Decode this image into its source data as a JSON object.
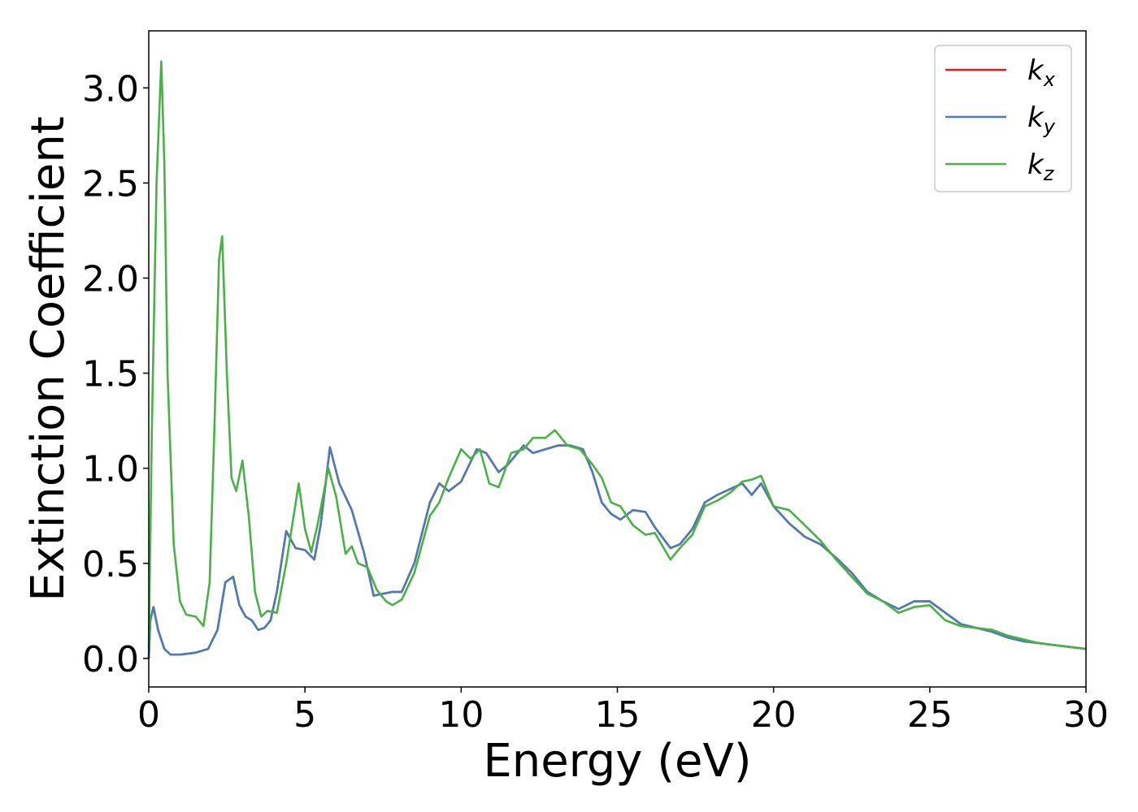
{
  "chart_data": {
    "type": "line",
    "xlabel": "Energy (eV)",
    "ylabel": "Extinction Coefficient",
    "xlim": [
      0,
      30
    ],
    "ylim": [
      -0.15,
      3.3
    ],
    "x_ticks": [
      0,
      5,
      10,
      15,
      20,
      25,
      30
    ],
    "x_tick_labels": [
      "0",
      "5",
      "10",
      "15",
      "20",
      "25",
      "30"
    ],
    "y_ticks": [
      0.0,
      0.5,
      1.0,
      1.5,
      2.0,
      2.5,
      3.0
    ],
    "y_tick_labels": [
      "0.0",
      "0.5",
      "1.0",
      "1.5",
      "2.0",
      "2.5",
      "3.0"
    ],
    "grid": false,
    "legend_position": "top-right",
    "series": [
      {
        "name": "k_x",
        "legend_base": "k",
        "legend_sub": "x",
        "color": "#e41a1c",
        "x": [
          0,
          0.05,
          0.15,
          0.3,
          0.5,
          0.7,
          1.0,
          1.5,
          1.9,
          2.2,
          2.45,
          2.7,
          2.9,
          3.1,
          3.3,
          3.5,
          3.7,
          3.9,
          4.1,
          4.4,
          4.7,
          5.0,
          5.3,
          5.5,
          5.8,
          6.1,
          6.5,
          6.9,
          7.2,
          7.5,
          7.8,
          8.1,
          8.5,
          9.0,
          9.3,
          9.6,
          10.0,
          10.5,
          10.8,
          11.2,
          11.5,
          12.0,
          12.3,
          12.7,
          13.1,
          13.5,
          13.9,
          14.2,
          14.5,
          14.8,
          15.1,
          15.5,
          15.9,
          16.2,
          16.7,
          17.0,
          17.4,
          17.8,
          18.2,
          18.6,
          19.0,
          19.3,
          19.6,
          20.0,
          20.5,
          21.0,
          21.5,
          22.0,
          22.5,
          23.0,
          23.5,
          24.0,
          24.5,
          25.0,
          25.5,
          26.0,
          26.5,
          27.0,
          27.5,
          28.0,
          28.5,
          29.0,
          29.5,
          30.0
        ],
        "values": [
          0.0,
          0.2,
          0.27,
          0.15,
          0.05,
          0.02,
          0.02,
          0.03,
          0.05,
          0.15,
          0.4,
          0.43,
          0.28,
          0.22,
          0.2,
          0.15,
          0.16,
          0.2,
          0.35,
          0.67,
          0.58,
          0.57,
          0.52,
          0.7,
          1.11,
          0.92,
          0.78,
          0.55,
          0.33,
          0.34,
          0.35,
          0.35,
          0.5,
          0.82,
          0.92,
          0.88,
          0.93,
          1.1,
          1.08,
          0.98,
          1.02,
          1.12,
          1.08,
          1.1,
          1.12,
          1.12,
          1.1,
          0.98,
          0.82,
          0.76,
          0.73,
          0.78,
          0.77,
          0.69,
          0.58,
          0.6,
          0.68,
          0.82,
          0.86,
          0.89,
          0.92,
          0.86,
          0.92,
          0.8,
          0.71,
          0.64,
          0.6,
          0.53,
          0.45,
          0.35,
          0.3,
          0.26,
          0.3,
          0.3,
          0.24,
          0.18,
          0.16,
          0.14,
          0.11,
          0.09,
          0.08,
          0.07,
          0.06,
          0.05
        ]
      },
      {
        "name": "k_y",
        "legend_base": "k",
        "legend_sub": "y",
        "color": "#4a7eb4",
        "x": [
          0,
          0.05,
          0.15,
          0.3,
          0.5,
          0.7,
          1.0,
          1.5,
          1.9,
          2.2,
          2.45,
          2.7,
          2.9,
          3.1,
          3.3,
          3.5,
          3.7,
          3.9,
          4.1,
          4.4,
          4.7,
          5.0,
          5.3,
          5.5,
          5.8,
          6.1,
          6.5,
          6.9,
          7.2,
          7.5,
          7.8,
          8.1,
          8.5,
          9.0,
          9.3,
          9.6,
          10.0,
          10.5,
          10.8,
          11.2,
          11.5,
          12.0,
          12.3,
          12.7,
          13.1,
          13.5,
          13.9,
          14.2,
          14.5,
          14.8,
          15.1,
          15.5,
          15.9,
          16.2,
          16.7,
          17.0,
          17.4,
          17.8,
          18.2,
          18.6,
          19.0,
          19.3,
          19.6,
          20.0,
          20.5,
          21.0,
          21.5,
          22.0,
          22.5,
          23.0,
          23.5,
          24.0,
          24.5,
          25.0,
          25.5,
          26.0,
          26.5,
          27.0,
          27.5,
          28.0,
          28.5,
          29.0,
          29.5,
          30.0
        ],
        "values": [
          0.0,
          0.2,
          0.27,
          0.15,
          0.05,
          0.02,
          0.02,
          0.03,
          0.05,
          0.15,
          0.4,
          0.43,
          0.28,
          0.22,
          0.2,
          0.15,
          0.16,
          0.2,
          0.35,
          0.67,
          0.58,
          0.57,
          0.52,
          0.7,
          1.11,
          0.92,
          0.78,
          0.55,
          0.33,
          0.34,
          0.35,
          0.35,
          0.5,
          0.82,
          0.92,
          0.88,
          0.93,
          1.1,
          1.08,
          0.98,
          1.02,
          1.12,
          1.08,
          1.1,
          1.12,
          1.12,
          1.1,
          0.98,
          0.82,
          0.76,
          0.73,
          0.78,
          0.77,
          0.69,
          0.58,
          0.6,
          0.68,
          0.82,
          0.86,
          0.89,
          0.92,
          0.86,
          0.92,
          0.8,
          0.71,
          0.64,
          0.6,
          0.53,
          0.45,
          0.35,
          0.3,
          0.26,
          0.3,
          0.3,
          0.24,
          0.18,
          0.16,
          0.14,
          0.11,
          0.09,
          0.08,
          0.07,
          0.06,
          0.05
        ]
      },
      {
        "name": "k_z",
        "legend_base": "k",
        "legend_sub": "z",
        "color": "#4daf4a",
        "x": [
          0,
          0.1,
          0.25,
          0.4,
          0.5,
          0.6,
          0.8,
          1.0,
          1.2,
          1.5,
          1.75,
          1.95,
          2.1,
          2.25,
          2.35,
          2.5,
          2.65,
          2.8,
          3.0,
          3.2,
          3.4,
          3.6,
          3.8,
          4.1,
          4.4,
          4.8,
          5.0,
          5.2,
          5.4,
          5.75,
          6.0,
          6.3,
          6.5,
          6.7,
          7.0,
          7.3,
          7.6,
          7.8,
          8.1,
          8.5,
          9.0,
          9.3,
          9.6,
          10.0,
          10.3,
          10.6,
          10.9,
          11.2,
          11.6,
          12.0,
          12.3,
          12.7,
          13.0,
          13.4,
          13.8,
          14.2,
          14.5,
          14.8,
          15.1,
          15.5,
          15.9,
          16.2,
          16.7,
          17.0,
          17.4,
          17.8,
          18.2,
          18.6,
          19.0,
          19.3,
          19.6,
          20.0,
          20.5,
          21.0,
          21.5,
          22.0,
          22.5,
          23.0,
          23.5,
          24.0,
          24.5,
          25.0,
          25.5,
          26.0,
          26.5,
          27.0,
          27.5,
          28.0,
          28.5,
          29.0,
          29.5,
          30.0
        ],
        "values": [
          0.05,
          1.2,
          2.5,
          3.14,
          2.6,
          1.5,
          0.6,
          0.3,
          0.23,
          0.22,
          0.17,
          0.4,
          1.2,
          2.1,
          2.22,
          1.5,
          0.95,
          0.88,
          1.04,
          0.75,
          0.35,
          0.22,
          0.25,
          0.24,
          0.5,
          0.92,
          0.68,
          0.56,
          0.7,
          1.0,
          0.85,
          0.55,
          0.59,
          0.5,
          0.48,
          0.36,
          0.3,
          0.28,
          0.31,
          0.45,
          0.75,
          0.82,
          0.95,
          1.1,
          1.05,
          1.1,
          0.92,
          0.9,
          1.08,
          1.1,
          1.16,
          1.16,
          1.2,
          1.12,
          1.1,
          1.02,
          0.95,
          0.82,
          0.8,
          0.7,
          0.65,
          0.66,
          0.52,
          0.58,
          0.65,
          0.8,
          0.83,
          0.87,
          0.93,
          0.94,
          0.96,
          0.8,
          0.78,
          0.7,
          0.62,
          0.52,
          0.43,
          0.34,
          0.3,
          0.24,
          0.27,
          0.28,
          0.2,
          0.17,
          0.16,
          0.15,
          0.12,
          0.1,
          0.08,
          0.07,
          0.06,
          0.05
        ]
      }
    ]
  }
}
